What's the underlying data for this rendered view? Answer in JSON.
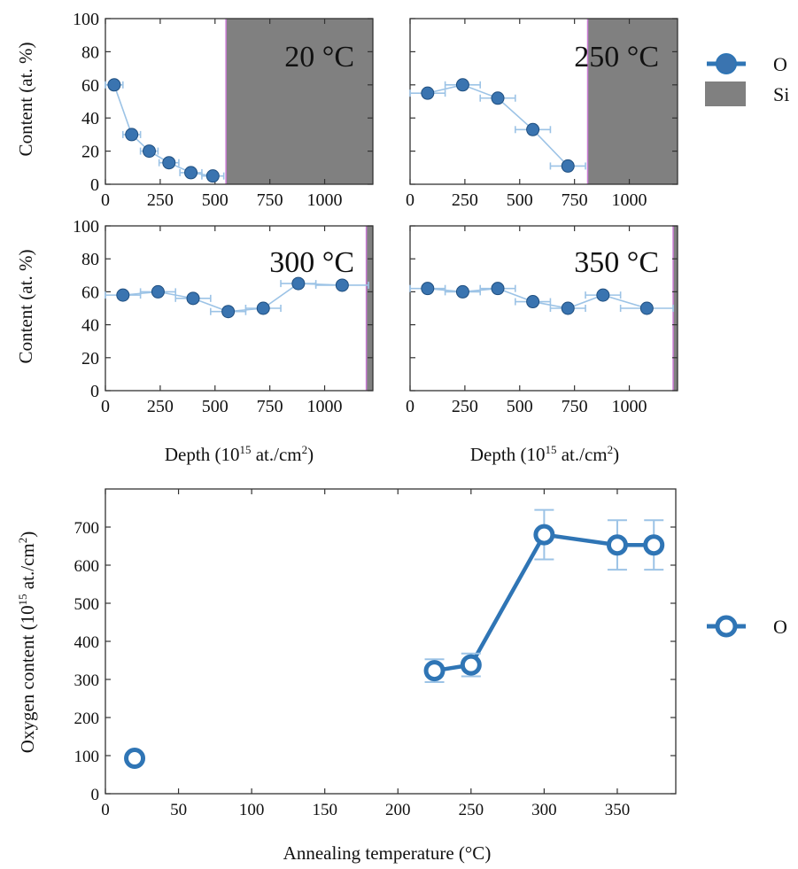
{
  "colors": {
    "series": "#2f75b5",
    "series_light": "#9cc3e6",
    "marker_fill": "#3a74b0",
    "silicon": "#808080",
    "axis": "#333333",
    "interface": "#c97bd4"
  },
  "top_panels": {
    "y_axis_label": "Content (at. %)",
    "x_axis_label": "Depth (10",
    "x_axis_label_exp": "15",
    "x_axis_label_suffix": " at./cm",
    "x_axis_label_exp2": "2",
    "x_axis_label_end": ")"
  },
  "top_legend": [
    {
      "label": "O",
      "icon": "filled-circle-line-icon"
    },
    {
      "label": "Si",
      "icon": "grey-box-icon"
    }
  ],
  "bottom_panel": {
    "y_axis_label": "Oxygen content (10",
    "y_axis_label_exp": "15",
    "y_axis_label_suffix": " at./cm",
    "y_axis_label_exp2": "2",
    "y_axis_label_end": ")",
    "x_axis_label": "Annealing temperature (°C)"
  },
  "bottom_legend": [
    {
      "label": "O",
      "icon": "open-circle-line-icon"
    }
  ],
  "chart_data": [
    {
      "type": "line",
      "panel": "20 °C",
      "title": "20 °C",
      "xlim": [
        0,
        1220
      ],
      "ylim": [
        0,
        100
      ],
      "xticks": [
        0,
        250,
        500,
        750,
        1000
      ],
      "yticks": [
        0,
        20,
        40,
        60,
        80,
        100
      ],
      "si_from": 550,
      "series": [
        {
          "name": "O",
          "x": [
            40,
            120,
            200,
            290,
            390,
            490
          ],
          "y": [
            60,
            30,
            20,
            13,
            7,
            5
          ],
          "xerr": [
            40,
            40,
            40,
            45,
            50,
            50
          ]
        }
      ]
    },
    {
      "type": "line",
      "panel": "250 °C",
      "title": "250 °C",
      "xlim": [
        0,
        1220
      ],
      "ylim": [
        0,
        100
      ],
      "xticks": [
        0,
        250,
        500,
        750,
        1000
      ],
      "yticks": [
        0,
        20,
        40,
        60,
        80,
        100
      ],
      "si_from": 810,
      "series": [
        {
          "name": "O",
          "x": [
            80,
            240,
            400,
            560,
            720
          ],
          "y": [
            55,
            60,
            52,
            33,
            11
          ],
          "xerr": [
            80,
            80,
            80,
            80,
            80
          ]
        }
      ]
    },
    {
      "type": "line",
      "panel": "300 °C",
      "title": "300 °C",
      "xlim": [
        0,
        1220
      ],
      "ylim": [
        0,
        100
      ],
      "xticks": [
        0,
        250,
        500,
        750,
        1000
      ],
      "yticks": [
        0,
        20,
        40,
        60,
        80,
        100
      ],
      "si_from": 1190,
      "series": [
        {
          "name": "O",
          "x": [
            80,
            240,
            400,
            560,
            720,
            880,
            1080
          ],
          "y": [
            58,
            60,
            56,
            48,
            50,
            65,
            64
          ],
          "xerr": [
            80,
            80,
            80,
            80,
            80,
            80,
            120
          ]
        }
      ]
    },
    {
      "type": "line",
      "panel": "350 °C",
      "title": "350 °C",
      "xlim": [
        0,
        1220
      ],
      "ylim": [
        0,
        100
      ],
      "xticks": [
        0,
        250,
        500,
        750,
        1000
      ],
      "yticks": [
        0,
        20,
        40,
        60,
        80,
        100
      ],
      "si_from": 1200,
      "series": [
        {
          "name": "O",
          "x": [
            80,
            240,
            400,
            560,
            720,
            880,
            1080
          ],
          "y": [
            62,
            60,
            62,
            54,
            50,
            58,
            50
          ],
          "xerr": [
            80,
            80,
            80,
            80,
            80,
            80,
            120
          ]
        }
      ]
    },
    {
      "type": "line",
      "panel": "bottom",
      "xlim": [
        0,
        390
      ],
      "ylim": [
        0,
        800
      ],
      "xticks": [
        0,
        50,
        100,
        150,
        200,
        250,
        300,
        350
      ],
      "yticks": [
        0,
        100,
        200,
        300,
        400,
        500,
        600,
        700
      ],
      "series": [
        {
          "name": "O",
          "x": [
            20,
            225,
            250,
            300,
            350,
            375
          ],
          "y": [
            93,
            323,
            338,
            680,
            653,
            653
          ],
          "yerr": [
            0,
            30,
            30,
            65,
            65,
            65
          ],
          "connected_from_index": 1
        }
      ]
    }
  ]
}
